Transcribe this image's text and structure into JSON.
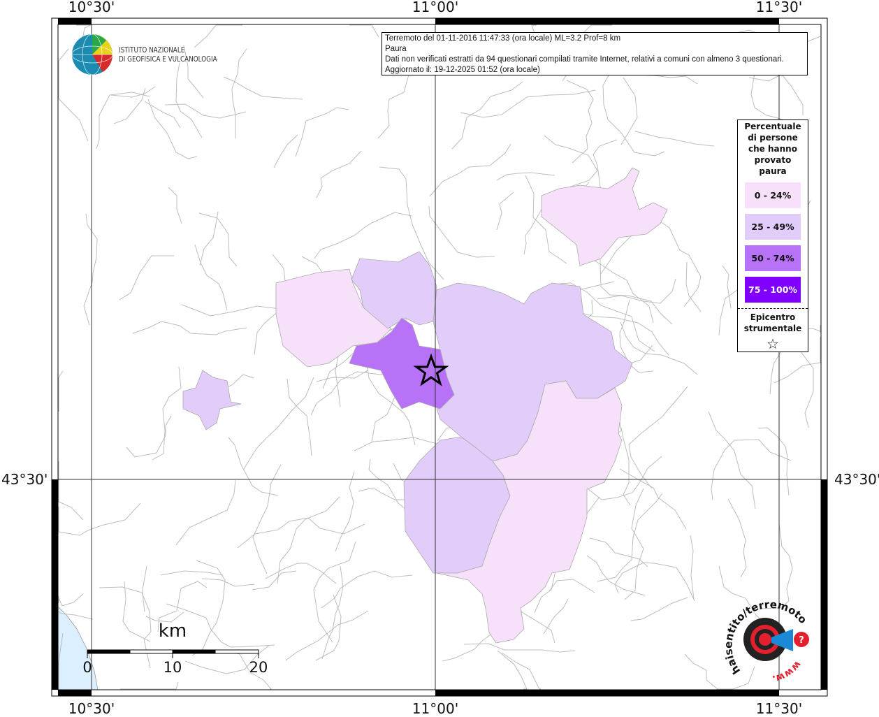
{
  "coordinates": {
    "lon_labels": [
      "10°30'",
      "11°00'",
      "11°30'"
    ],
    "lat_labels": [
      "43°30'"
    ]
  },
  "info_box": {
    "line1": "Terremoto del 01-11-2016 11:47:33 (ora locale) ML=3.2 Prof=8 km",
    "line2": "Paura",
    "line3": "Dati non verificati estratti da 94 questionari compilati tramite Internet, relativi a comuni con almeno 3 questionari.",
    "line4": "Aggiornato il: 19-12-2025 01:52 (ora locale)"
  },
  "logo": {
    "line1": "ISTITUTO NAZIONALE",
    "line2": "DI GEOFISICA E VULCANOLOGIA"
  },
  "legend": {
    "title": [
      "Percentuale",
      "di persone",
      "che hanno",
      "provato",
      "paura"
    ],
    "classes": [
      {
        "label": "0 - 24%",
        "color": "#f7e1fa",
        "text_color": "#111111"
      },
      {
        "label": "25 - 49%",
        "color": "#e2cdfa",
        "text_color": "#111111"
      },
      {
        "label": "50 - 74%",
        "color": "#b872f8",
        "text_color": "#111111"
      },
      {
        "label": "75 - 100%",
        "color": "#7f00ff",
        "text_color": "#ffffff"
      }
    ],
    "epicenter_label": [
      "Epicentro",
      "strumentale"
    ],
    "epicenter_icon": "star-outline-icon"
  },
  "scale_bar": {
    "unit": "km",
    "ticks": [
      "0",
      "10",
      "20"
    ]
  },
  "brand": {
    "text": "haisentito/terremoto.it",
    "prefix": "www."
  },
  "colors": {
    "sea": "#dcefff",
    "borders": "#bdbdbd"
  }
}
